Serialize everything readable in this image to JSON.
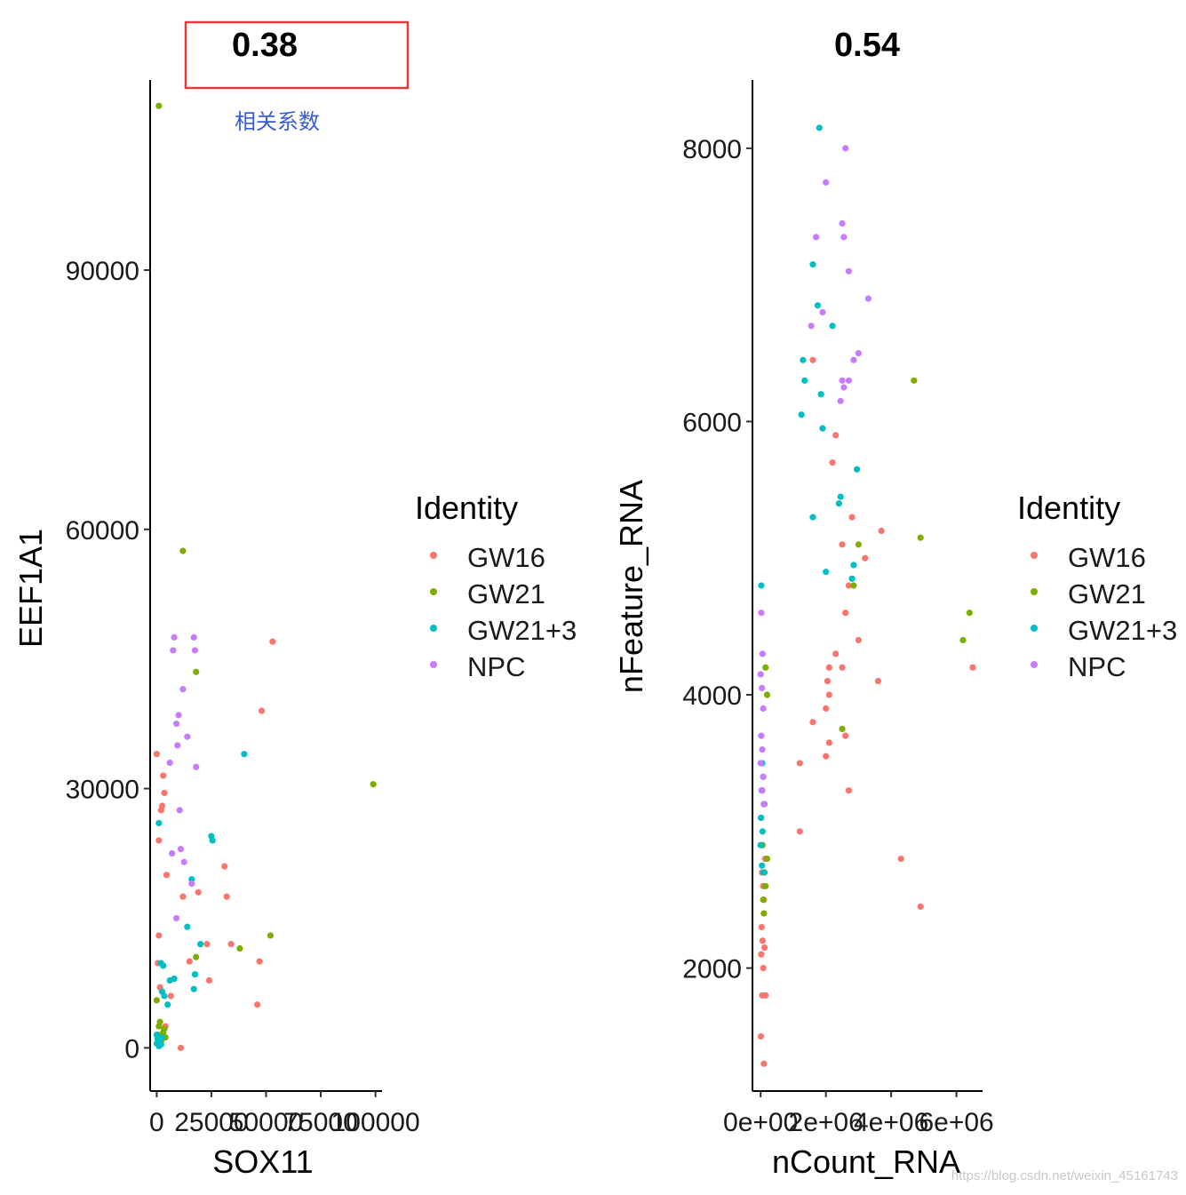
{
  "chart_data": [
    {
      "type": "scatter",
      "title": "0.38",
      "xlabel": "SOX11",
      "ylabel": "EEF1A1",
      "xlim": [
        -3000,
        103000
      ],
      "ylim": [
        -5000,
        112000
      ],
      "xticks": [
        0,
        25000,
        50000,
        75000,
        100000
      ],
      "xtick_labels": [
        "0",
        "25000",
        "50000",
        "75000",
        "100000"
      ],
      "yticks": [
        0,
        30000,
        60000,
        90000
      ],
      "ytick_labels": [
        "0",
        "30000",
        "60000",
        "90000"
      ],
      "grid": false,
      "legend": {
        "title": "Identity",
        "placement": "right",
        "items": [
          {
            "name": "GW16",
            "color": "#f8766d"
          },
          {
            "name": "GW21",
            "color": "#7cae00"
          },
          {
            "name": "GW21+3",
            "color": "#00bfc4"
          },
          {
            "name": "NPC",
            "color": "#c77cff"
          }
        ]
      },
      "annotation": {
        "text": "相关系数",
        "box_color": "#e03c3c",
        "text_color": "#3b5bd6"
      },
      "series": [
        {
          "name": "GW16",
          "color": "#f8766d",
          "points": [
            [
              0,
              34000
            ],
            [
              1000,
              13000
            ],
            [
              500,
              9800
            ],
            [
              1500,
              7000
            ],
            [
              2000,
              27500
            ],
            [
              2500,
              28000
            ],
            [
              3500,
              29500
            ],
            [
              3000,
              31500
            ],
            [
              1000,
              24000
            ],
            [
              4500,
              20000
            ],
            [
              6500,
              6000
            ],
            [
              8000,
              8000
            ],
            [
              11000,
              0
            ],
            [
              12000,
              17500
            ],
            [
              15000,
              10000
            ],
            [
              19000,
              18000
            ],
            [
              23000,
              12000
            ],
            [
              24000,
              7800
            ],
            [
              31000,
              21000
            ],
            [
              32000,
              17500
            ],
            [
              34000,
              12000
            ],
            [
              46000,
              5000
            ],
            [
              47000,
              10000
            ],
            [
              48000,
              39000
            ],
            [
              53000,
              47000
            ],
            [
              1500,
              500
            ],
            [
              2000,
              1500
            ],
            [
              4000,
              2500
            ]
          ]
        },
        {
          "name": "GW21",
          "color": "#7cae00",
          "points": [
            [
              1000,
              109000
            ],
            [
              12000,
              57500
            ],
            [
              18000,
              43500
            ],
            [
              38000,
              11500
            ],
            [
              52000,
              13000
            ],
            [
              99000,
              30500
            ],
            [
              18000,
              10500
            ],
            [
              0,
              5500
            ],
            [
              500,
              1500
            ],
            [
              1000,
              2500
            ],
            [
              2000,
              800
            ],
            [
              3000,
              1800
            ],
            [
              3500,
              2200
            ],
            [
              4000,
              1200
            ],
            [
              1500,
              3000
            ]
          ]
        },
        {
          "name": "GW21+3",
          "color": "#00bfc4",
          "points": [
            [
              1000,
              26000
            ],
            [
              2000,
              9800
            ],
            [
              3000,
              9500
            ],
            [
              2500,
              6500
            ],
            [
              3500,
              6000
            ],
            [
              5000,
              5000
            ],
            [
              6000,
              7800
            ],
            [
              8000,
              8000
            ],
            [
              14000,
              14000
            ],
            [
              16000,
              19500
            ],
            [
              17000,
              6800
            ],
            [
              17500,
              8500
            ],
            [
              20000,
              12000
            ],
            [
              25000,
              24500
            ],
            [
              25500,
              24000
            ],
            [
              40000,
              34000
            ],
            [
              0,
              500
            ],
            [
              500,
              1000
            ],
            [
              1000,
              200
            ],
            [
              1500,
              800
            ],
            [
              2000,
              400
            ],
            [
              0,
              1500
            ],
            [
              2500,
              1200
            ]
          ]
        },
        {
          "name": "NPC",
          "color": "#c77cff",
          "points": [
            [
              6000,
              33000
            ],
            [
              7000,
              22500
            ],
            [
              8000,
              47500
            ],
            [
              7500,
              46000
            ],
            [
              9000,
              37500
            ],
            [
              10000,
              38500
            ],
            [
              10500,
              27500
            ],
            [
              9500,
              35000
            ],
            [
              11000,
              23000
            ],
            [
              12000,
              41500
            ],
            [
              12500,
              21500
            ],
            [
              14000,
              36000
            ],
            [
              16000,
              19000
            ],
            [
              17000,
              47500
            ],
            [
              17500,
              46000
            ],
            [
              18000,
              32500
            ],
            [
              9000,
              15000
            ]
          ]
        }
      ]
    },
    {
      "type": "scatter",
      "title": "0.54",
      "xlabel": "nCount_RNA",
      "ylabel": "nFeature_RNA",
      "xlim": [
        -250000,
        6800000
      ],
      "ylim": [
        1100,
        8500
      ],
      "xticks": [
        0,
        2000000,
        4000000,
        6000000
      ],
      "xtick_labels": [
        "0e+00",
        "2e+06",
        "4e+06",
        "6e+06"
      ],
      "yticks": [
        2000,
        4000,
        6000,
        8000
      ],
      "ytick_labels": [
        "2000",
        "4000",
        "6000",
        "8000"
      ],
      "grid": false,
      "legend": {
        "title": "Identity",
        "placement": "right",
        "items": [
          {
            "name": "GW16",
            "color": "#f8766d"
          },
          {
            "name": "GW21",
            "color": "#7cae00"
          },
          {
            "name": "GW21+3",
            "color": "#00bfc4"
          },
          {
            "name": "NPC",
            "color": "#c77cff"
          }
        ]
      },
      "series": [
        {
          "name": "GW16",
          "color": "#f8766d",
          "points": [
            [
              10000,
              1500
            ],
            [
              100000,
              1300
            ],
            [
              50000,
              1800
            ],
            [
              150000,
              1800
            ],
            [
              80000,
              2000
            ],
            [
              20000,
              2100
            ],
            [
              120000,
              2150
            ],
            [
              60000,
              2200
            ],
            [
              30000,
              2300
            ],
            [
              100000,
              2500
            ],
            [
              80000,
              2600
            ],
            [
              40000,
              2700
            ],
            [
              140000,
              2800
            ],
            [
              60000,
              2900
            ],
            [
              20000,
              3100
            ],
            [
              120000,
              3200
            ],
            [
              50000,
              3300
            ],
            [
              1200000,
              3000
            ],
            [
              1200000,
              3500
            ],
            [
              1600000,
              3800
            ],
            [
              2000000,
              3550
            ],
            [
              2100000,
              3650
            ],
            [
              2000000,
              3900
            ],
            [
              2100000,
              4000
            ],
            [
              2050000,
              4100
            ],
            [
              2100000,
              4200
            ],
            [
              2300000,
              4300
            ],
            [
              2500000,
              4200
            ],
            [
              2600000,
              3700
            ],
            [
              2700000,
              3300
            ],
            [
              2600000,
              4600
            ],
            [
              3000000,
              4400
            ],
            [
              3600000,
              4100
            ],
            [
              2700000,
              4800
            ],
            [
              2500000,
              5100
            ],
            [
              2800000,
              5300
            ],
            [
              3200000,
              5000
            ],
            [
              3700000,
              5200
            ],
            [
              2200000,
              5700
            ],
            [
              2300000,
              5900
            ],
            [
              1600000,
              6450
            ],
            [
              4300000,
              2800
            ],
            [
              4900000,
              2450
            ],
            [
              6500000,
              4200
            ]
          ]
        },
        {
          "name": "GW21",
          "color": "#7cae00",
          "points": [
            [
              150000,
              4200
            ],
            [
              200000,
              4000
            ],
            [
              100000,
              3200
            ],
            [
              200000,
              2800
            ],
            [
              120000,
              2700
            ],
            [
              150000,
              2600
            ],
            [
              80000,
              2500
            ],
            [
              100000,
              2400
            ],
            [
              50000,
              2900
            ],
            [
              2500000,
              3750
            ],
            [
              2850000,
              4800
            ],
            [
              3000000,
              5100
            ],
            [
              4900000,
              5150
            ],
            [
              4700000,
              6300
            ],
            [
              6200000,
              4400
            ],
            [
              6400000,
              4600
            ]
          ]
        },
        {
          "name": "GW21+3",
          "color": "#00bfc4",
          "points": [
            [
              20000,
              4800
            ],
            [
              50000,
              3500
            ],
            [
              80000,
              3400
            ],
            [
              30000,
              3300
            ],
            [
              10000,
              3100
            ],
            [
              60000,
              3000
            ],
            [
              0,
              2900
            ],
            [
              40000,
              2750
            ],
            [
              90000,
              2700
            ],
            [
              1250000,
              6050
            ],
            [
              1300000,
              6450
            ],
            [
              1350000,
              6300
            ],
            [
              1600000,
              5300
            ],
            [
              1600000,
              7150
            ],
            [
              1750000,
              6850
            ],
            [
              1800000,
              8150
            ],
            [
              1850000,
              6200
            ],
            [
              1900000,
              5950
            ],
            [
              2000000,
              4900
            ],
            [
              2200000,
              6700
            ],
            [
              2400000,
              5400
            ],
            [
              2450000,
              5450
            ],
            [
              2800000,
              4850
            ],
            [
              2850000,
              4950
            ],
            [
              2950000,
              5650
            ]
          ]
        },
        {
          "name": "NPC",
          "color": "#c77cff",
          "points": [
            [
              20000,
              4600
            ],
            [
              60000,
              4300
            ],
            [
              0,
              4150
            ],
            [
              40000,
              4050
            ],
            [
              80000,
              3900
            ],
            [
              20000,
              3700
            ],
            [
              50000,
              3600
            ],
            [
              0,
              3500
            ],
            [
              80000,
              3400
            ],
            [
              40000,
              3300
            ],
            [
              100000,
              3200
            ],
            [
              1550000,
              6700
            ],
            [
              1700000,
              7350
            ],
            [
              1900000,
              6800
            ],
            [
              2000000,
              7750
            ],
            [
              2450000,
              6150
            ],
            [
              2500000,
              6300
            ],
            [
              2550000,
              6250
            ],
            [
              2700000,
              6300
            ],
            [
              2500000,
              7450
            ],
            [
              2550000,
              7350
            ],
            [
              2600000,
              8000
            ],
            [
              2700000,
              7100
            ],
            [
              2850000,
              6450
            ],
            [
              3000000,
              6500
            ],
            [
              3300000,
              6900
            ]
          ]
        }
      ]
    }
  ],
  "watermark": "https://blog.csdn.net/weixin_45161743"
}
